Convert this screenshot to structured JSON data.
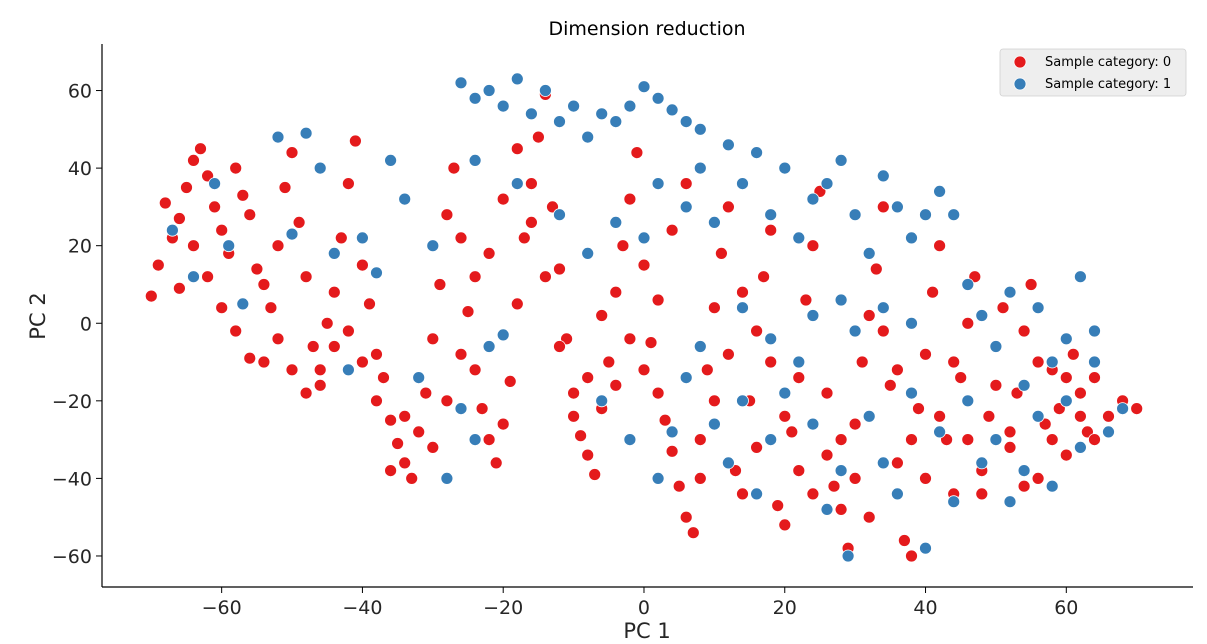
{
  "chart_data": {
    "type": "scatter",
    "title": "Dimension reduction",
    "xlabel": "PC 1",
    "ylabel": "PC 2",
    "xlim": [
      -77,
      78
    ],
    "ylim": [
      -68,
      72
    ],
    "xticks": [
      -60,
      -40,
      -20,
      0,
      20,
      40,
      60
    ],
    "yticks": [
      -60,
      -40,
      -20,
      0,
      20,
      40,
      60
    ],
    "xtick_labels": [
      "−60",
      "−40",
      "−20",
      "0",
      "20",
      "40",
      "60"
    ],
    "ytick_labels": [
      "−60",
      "−40",
      "−20",
      "0",
      "20",
      "40",
      "60"
    ],
    "grid": false,
    "legend_position": "top-right",
    "series": [
      {
        "name": "Sample category: 0",
        "color": "#e41a1c",
        "points": [
          [
            -70,
            7
          ],
          [
            -68,
            31
          ],
          [
            -67,
            22
          ],
          [
            -66,
            27
          ],
          [
            -65,
            35
          ],
          [
            -64,
            42
          ],
          [
            -63,
            45
          ],
          [
            -62,
            38
          ],
          [
            -61,
            30
          ],
          [
            -60,
            24
          ],
          [
            -59,
            18
          ],
          [
            -58,
            40
          ],
          [
            -57,
            33
          ],
          [
            -56,
            28
          ],
          [
            -55,
            14
          ],
          [
            -54,
            10
          ],
          [
            -53,
            4
          ],
          [
            -52,
            20
          ],
          [
            -51,
            35
          ],
          [
            -50,
            44
          ],
          [
            -49,
            26
          ],
          [
            -48,
            12
          ],
          [
            -47,
            -6
          ],
          [
            -46,
            -12
          ],
          [
            -45,
            0
          ],
          [
            -44,
            8
          ],
          [
            -43,
            22
          ],
          [
            -42,
            36
          ],
          [
            -41,
            47
          ],
          [
            -40,
            15
          ],
          [
            -39,
            5
          ],
          [
            -38,
            -8
          ],
          [
            -37,
            -14
          ],
          [
            -36,
            -25
          ],
          [
            -35,
            -31
          ],
          [
            -34,
            -36
          ],
          [
            -33,
            -40
          ],
          [
            -32,
            -28
          ],
          [
            -31,
            -18
          ],
          [
            -30,
            -4
          ],
          [
            -29,
            10
          ],
          [
            -28,
            28
          ],
          [
            -27,
            40
          ],
          [
            -26,
            22
          ],
          [
            -25,
            3
          ],
          [
            -24,
            -12
          ],
          [
            -23,
            -22
          ],
          [
            -22,
            -30
          ],
          [
            -21,
            -36
          ],
          [
            -20,
            -26
          ],
          [
            -19,
            -15
          ],
          [
            -18,
            5
          ],
          [
            -17,
            22
          ],
          [
            -16,
            36
          ],
          [
            -15,
            48
          ],
          [
            -14,
            59
          ],
          [
            -13,
            30
          ],
          [
            -12,
            14
          ],
          [
            -11,
            -4
          ],
          [
            -10,
            -18
          ],
          [
            -9,
            -29
          ],
          [
            -8,
            -34
          ],
          [
            -7,
            -39
          ],
          [
            -6,
            -22
          ],
          [
            -5,
            -10
          ],
          [
            -4,
            8
          ],
          [
            -3,
            20
          ],
          [
            -2,
            32
          ],
          [
            -1,
            44
          ],
          [
            0,
            15
          ],
          [
            1,
            -5
          ],
          [
            2,
            -18
          ],
          [
            3,
            -25
          ],
          [
            4,
            -33
          ],
          [
            5,
            -42
          ],
          [
            6,
            -50
          ],
          [
            7,
            -54
          ],
          [
            8,
            -30
          ],
          [
            9,
            -12
          ],
          [
            10,
            4
          ],
          [
            11,
            18
          ],
          [
            12,
            30
          ],
          [
            13,
            -38
          ],
          [
            14,
            -44
          ],
          [
            15,
            -20
          ],
          [
            16,
            -2
          ],
          [
            17,
            12
          ],
          [
            18,
            24
          ],
          [
            19,
            -47
          ],
          [
            20,
            -52
          ],
          [
            21,
            -28
          ],
          [
            22,
            -14
          ],
          [
            23,
            6
          ],
          [
            24,
            20
          ],
          [
            25,
            34
          ],
          [
            26,
            -34
          ],
          [
            27,
            -42
          ],
          [
            28,
            -48
          ],
          [
            29,
            -58
          ],
          [
            30,
            -26
          ],
          [
            31,
            -10
          ],
          [
            32,
            2
          ],
          [
            33,
            14
          ],
          [
            34,
            30
          ],
          [
            35,
            -16
          ],
          [
            36,
            -36
          ],
          [
            37,
            -56
          ],
          [
            38,
            -60
          ],
          [
            39,
            -22
          ],
          [
            40,
            -8
          ],
          [
            41,
            8
          ],
          [
            42,
            20
          ],
          [
            43,
            -30
          ],
          [
            44,
            -44
          ],
          [
            45,
            -14
          ],
          [
            46,
            0
          ],
          [
            47,
            12
          ],
          [
            48,
            -38
          ],
          [
            49,
            -24
          ],
          [
            50,
            -6
          ],
          [
            51,
            4
          ],
          [
            52,
            -32
          ],
          [
            53,
            -18
          ],
          [
            54,
            -2
          ],
          [
            55,
            10
          ],
          [
            56,
            -40
          ],
          [
            57,
            -26
          ],
          [
            58,
            -12
          ],
          [
            59,
            -22
          ],
          [
            60,
            -34
          ],
          [
            61,
            -8
          ],
          [
            62,
            -18
          ],
          [
            63,
            -28
          ],
          [
            64,
            -14
          ],
          [
            66,
            -24
          ],
          [
            68,
            -20
          ],
          [
            70,
            -22
          ],
          [
            -69,
            15
          ],
          [
            -66,
            9
          ],
          [
            -64,
            20
          ],
          [
            -62,
            12
          ],
          [
            -60,
            4
          ],
          [
            -58,
            -2
          ],
          [
            -56,
            -9
          ],
          [
            -54,
            -10
          ],
          [
            -52,
            -4
          ],
          [
            -50,
            -12
          ],
          [
            -48,
            -18
          ],
          [
            -46,
            -16
          ],
          [
            -44,
            -6
          ],
          [
            -42,
            -2
          ],
          [
            -40,
            -10
          ],
          [
            -38,
            -20
          ],
          [
            -36,
            -38
          ],
          [
            -34,
            -24
          ],
          [
            -32,
            -14
          ],
          [
            -30,
            -32
          ],
          [
            -28,
            -20
          ],
          [
            -26,
            -8
          ],
          [
            -24,
            12
          ],
          [
            -22,
            18
          ],
          [
            -20,
            32
          ],
          [
            -18,
            45
          ],
          [
            -16,
            26
          ],
          [
            -14,
            12
          ],
          [
            -12,
            -6
          ],
          [
            -10,
            -24
          ],
          [
            -8,
            -14
          ],
          [
            -6,
            2
          ],
          [
            -4,
            -16
          ],
          [
            -2,
            -4
          ],
          [
            0,
            -12
          ],
          [
            2,
            6
          ],
          [
            4,
            24
          ],
          [
            6,
            36
          ],
          [
            8,
            -40
          ],
          [
            10,
            -20
          ],
          [
            12,
            -8
          ],
          [
            14,
            8
          ],
          [
            16,
            -32
          ],
          [
            18,
            -10
          ],
          [
            20,
            -24
          ],
          [
            22,
            -38
          ],
          [
            24,
            -44
          ],
          [
            26,
            -18
          ],
          [
            28,
            -30
          ],
          [
            30,
            -40
          ],
          [
            32,
            -50
          ],
          [
            34,
            -2
          ],
          [
            36,
            -12
          ],
          [
            38,
            -30
          ],
          [
            40,
            -40
          ],
          [
            42,
            -24
          ],
          [
            44,
            -10
          ],
          [
            46,
            -30
          ],
          [
            48,
            -44
          ],
          [
            50,
            -16
          ],
          [
            52,
            -28
          ],
          [
            54,
            -42
          ],
          [
            56,
            -10
          ],
          [
            58,
            -30
          ],
          [
            60,
            -14
          ],
          [
            62,
            -24
          ],
          [
            64,
            -30
          ]
        ]
      },
      {
        "name": "Sample category: 1",
        "color": "#377eb8",
        "points": [
          [
            -67,
            24
          ],
          [
            -64,
            12
          ],
          [
            -61,
            36
          ],
          [
            -59,
            20
          ],
          [
            -57,
            5
          ],
          [
            -52,
            48
          ],
          [
            -50,
            23
          ],
          [
            -48,
            49
          ],
          [
            -46,
            40
          ],
          [
            -44,
            18
          ],
          [
            -42,
            -12
          ],
          [
            -40,
            22
          ],
          [
            -38,
            13
          ],
          [
            -36,
            42
          ],
          [
            -34,
            32
          ],
          [
            -32,
            -14
          ],
          [
            -30,
            20
          ],
          [
            -28,
            -40
          ],
          [
            -26,
            -22
          ],
          [
            -24,
            -30
          ],
          [
            -22,
            -6
          ],
          [
            -20,
            -3
          ],
          [
            -26,
            62
          ],
          [
            -24,
            58
          ],
          [
            -22,
            60
          ],
          [
            -20,
            56
          ],
          [
            -18,
            63
          ],
          [
            -16,
            54
          ],
          [
            -14,
            60
          ],
          [
            -12,
            52
          ],
          [
            -10,
            56
          ],
          [
            -8,
            48
          ],
          [
            -6,
            54
          ],
          [
            -4,
            52
          ],
          [
            -2,
            56
          ],
          [
            0,
            61
          ],
          [
            2,
            58
          ],
          [
            4,
            55
          ],
          [
            6,
            52
          ],
          [
            8,
            50
          ],
          [
            -24,
            42
          ],
          [
            -18,
            36
          ],
          [
            -12,
            28
          ],
          [
            -8,
            18
          ],
          [
            -4,
            26
          ],
          [
            0,
            22
          ],
          [
            2,
            36
          ],
          [
            6,
            30
          ],
          [
            8,
            40
          ],
          [
            10,
            26
          ],
          [
            12,
            46
          ],
          [
            14,
            36
          ],
          [
            16,
            44
          ],
          [
            18,
            28
          ],
          [
            20,
            40
          ],
          [
            22,
            22
          ],
          [
            24,
            32
          ],
          [
            26,
            36
          ],
          [
            28,
            42
          ],
          [
            30,
            28
          ],
          [
            32,
            18
          ],
          [
            34,
            38
          ],
          [
            36,
            30
          ],
          [
            38,
            22
          ],
          [
            40,
            28
          ],
          [
            42,
            34
          ],
          [
            44,
            28
          ],
          [
            46,
            10
          ],
          [
            48,
            2
          ],
          [
            50,
            -6
          ],
          [
            52,
            8
          ],
          [
            54,
            -16
          ],
          [
            56,
            4
          ],
          [
            58,
            -10
          ],
          [
            60,
            -4
          ],
          [
            62,
            12
          ],
          [
            64,
            -2
          ],
          [
            66,
            -28
          ],
          [
            68,
            -22
          ],
          [
            -6,
            -20
          ],
          [
            -2,
            -30
          ],
          [
            2,
            -40
          ],
          [
            4,
            -28
          ],
          [
            6,
            -14
          ],
          [
            8,
            -6
          ],
          [
            10,
            -26
          ],
          [
            12,
            -36
          ],
          [
            14,
            -20
          ],
          [
            16,
            -44
          ],
          [
            18,
            -30
          ],
          [
            20,
            -18
          ],
          [
            22,
            -10
          ],
          [
            24,
            -26
          ],
          [
            26,
            -48
          ],
          [
            28,
            -38
          ],
          [
            29,
            -60
          ],
          [
            30,
            -2
          ],
          [
            32,
            -24
          ],
          [
            34,
            -36
          ],
          [
            36,
            -44
          ],
          [
            38,
            -18
          ],
          [
            40,
            -58
          ],
          [
            42,
            -28
          ],
          [
            44,
            -46
          ],
          [
            46,
            -20
          ],
          [
            48,
            -36
          ],
          [
            50,
            -30
          ],
          [
            52,
            -46
          ],
          [
            54,
            -38
          ],
          [
            56,
            -24
          ],
          [
            58,
            -42
          ],
          [
            60,
            -20
          ],
          [
            62,
            -32
          ],
          [
            64,
            -10
          ],
          [
            14,
            4
          ],
          [
            18,
            -4
          ],
          [
            24,
            2
          ],
          [
            28,
            6
          ],
          [
            34,
            4
          ],
          [
            38,
            0
          ]
        ]
      }
    ]
  }
}
